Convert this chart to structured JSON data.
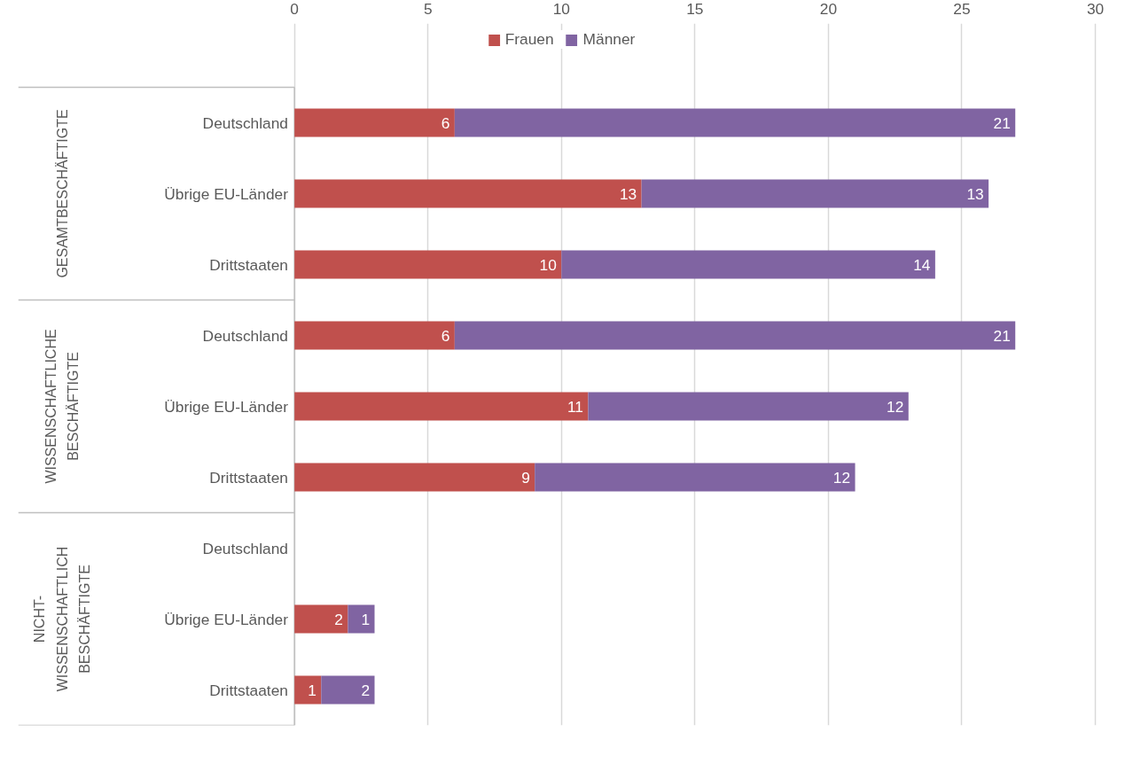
{
  "chart_data": {
    "type": "bar",
    "orientation": "horizontal",
    "stacked": true,
    "categories": [
      "Deutschland",
      "Übrige EU-Länder",
      "Drittstaaten",
      "Deutschland",
      "Übrige EU-Länder",
      "Drittstaaten",
      "Deutschland",
      "Übrige EU-Länder",
      "Drittstaaten"
    ],
    "series": [
      {
        "name": "Frauen",
        "color": "#c0504d",
        "values": [
          6,
          13,
          10,
          6,
          11,
          9,
          null,
          2,
          1
        ]
      },
      {
        "name": "Männer",
        "color": "#8064a2",
        "values": [
          21,
          13,
          14,
          21,
          12,
          12,
          null,
          1,
          2
        ]
      }
    ],
    "annotations": [
      "GESAMTBESCHÄFTIGTE",
      "WISSENSCHAFTLICHE BESCHÄFTIGTE",
      "NICHT- WISSENSCHAFTLICH BESCHÄFTIGTE"
    ],
    "xlim": [
      0,
      30
    ],
    "xticks": [
      0,
      5,
      10,
      15,
      20,
      25,
      30
    ],
    "grid": "x",
    "legend": "top",
    "data_labels": true
  }
}
